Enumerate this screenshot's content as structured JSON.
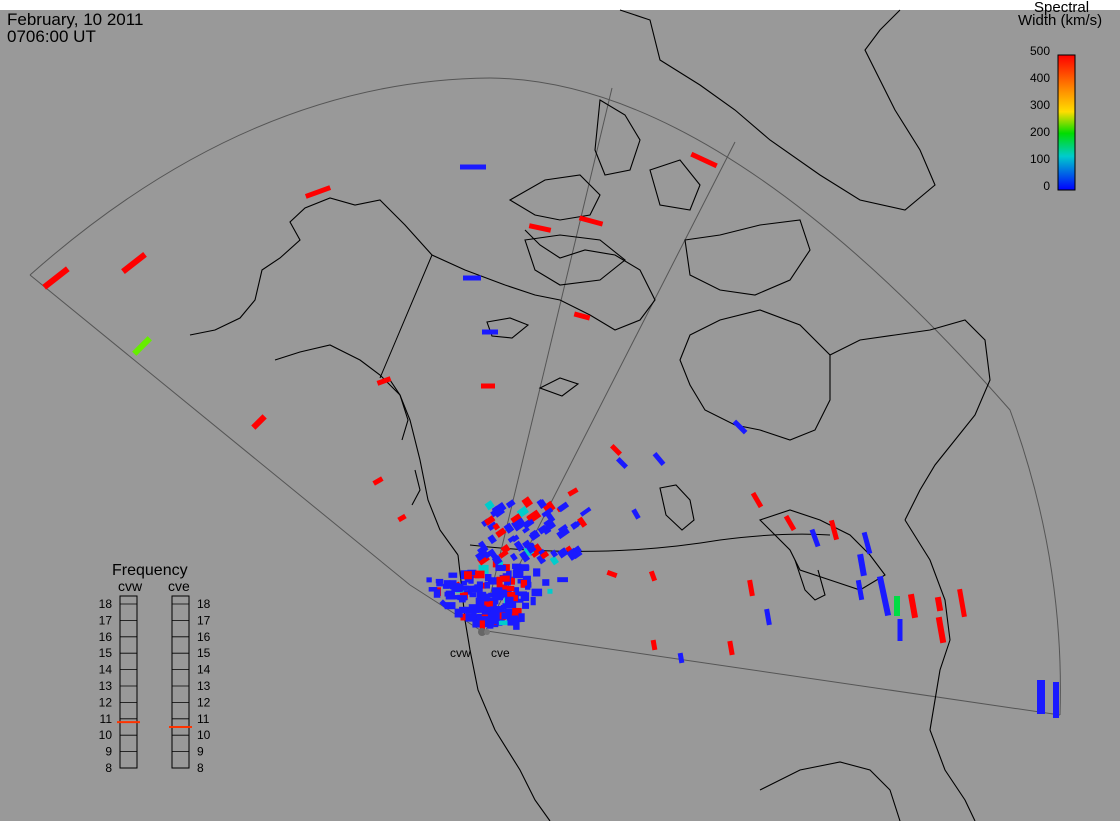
{
  "header": {
    "date": "February, 10 2011",
    "time": "0706:00 UT"
  },
  "colorbar": {
    "title_line1": "Spectral",
    "title_line2": "Width (km/s)",
    "ticks": [
      "500",
      "400",
      "300",
      "200",
      "100",
      "0"
    ],
    "range": [
      0,
      500
    ],
    "colors": [
      "#ff0000",
      "#ff8800",
      "#ffff00",
      "#00dd00",
      "#00cccc",
      "#0000ff"
    ]
  },
  "frequency": {
    "title": "Frequency",
    "radar_labels": [
      "cvw",
      "cve"
    ],
    "ticks": [
      "18",
      "17",
      "16",
      "15",
      "14",
      "13",
      "12",
      "11",
      "10",
      "9",
      "8"
    ],
    "cvw_freq_mhz": 10.8,
    "cve_freq_mhz": 10.5,
    "indicator_color": "#ff3300"
  },
  "map": {
    "background": "#999999",
    "radar_site_labels": [
      "cvw",
      "cve"
    ]
  }
}
